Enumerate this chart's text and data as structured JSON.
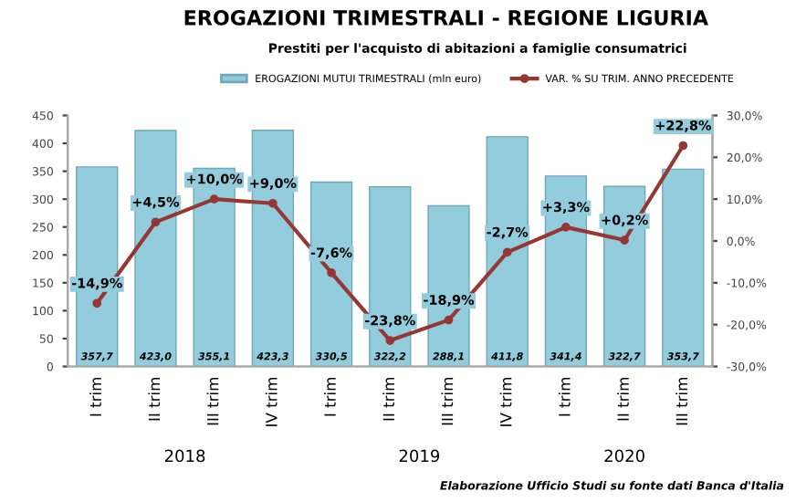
{
  "chart_data": {
    "type": "bar",
    "title": "EROGAZIONI TRIMESTRALI - REGIONE LIGURIA",
    "subtitle": "Prestiti per l'acquisto di abitazioni a famiglie consumatrici",
    "categories": [
      "I trim",
      "II trim",
      "III trim",
      "IV trim",
      "I trim",
      "II trim",
      "III trim",
      "IV trim",
      "I trim",
      "II trim",
      "III trim"
    ],
    "series": [
      {
        "name": "EROGAZIONI MUTUI TRIMESTRALI (mln euro)",
        "color": "#93cddd",
        "values": [
          357.7,
          423.0,
          355.1,
          423.3,
          330.5,
          322.2,
          288.1,
          411.8,
          341.4,
          322.7,
          353.7
        ],
        "value_labels": [
          "357,7",
          "423,0",
          "355,1",
          "423,3",
          "330,5",
          "322,2",
          "288,1",
          "411,8",
          "341,4",
          "322,7",
          "353,7"
        ]
      },
      {
        "name": "VAR. % SU TRIM. ANNO PRECEDENTE",
        "type": "line",
        "axis": "y2",
        "color": "#953735",
        "marker": "circle",
        "values": [
          -14.9,
          4.5,
          10.0,
          9.0,
          -7.6,
          -23.8,
          -18.9,
          -2.7,
          3.3,
          0.2,
          22.8
        ],
        "value_labels": [
          "-14,9%",
          "+4,5%",
          "+10,0%",
          "+9,0%",
          "-7,6%",
          "-23,8%",
          "-18,9%",
          "-2,7%",
          "+3,3%",
          "+0,2%",
          "+22,8%"
        ]
      }
    ],
    "ylim": [
      0,
      450
    ],
    "yticks": [
      0,
      50,
      100,
      150,
      200,
      250,
      300,
      350,
      400,
      450
    ],
    "y2lim": [
      -30,
      30
    ],
    "y2ticks": [
      {
        "value": -30,
        "label": "-30,0%"
      },
      {
        "value": -20,
        "label": "-20,0%"
      },
      {
        "value": -10,
        "label": "-10,0%"
      },
      {
        "value": 0,
        "label": "0,0%"
      },
      {
        "value": 10,
        "label": "10,0%"
      },
      {
        "value": 20,
        "label": "20,0%"
      },
      {
        "value": 30,
        "label": "30,0%"
      }
    ],
    "legend": "top",
    "grid": false,
    "annotations": [
      "2018",
      "2019",
      "2020",
      "Elaborazione Ufficio Studi su fonte dati Banca d'Italia"
    ]
  }
}
